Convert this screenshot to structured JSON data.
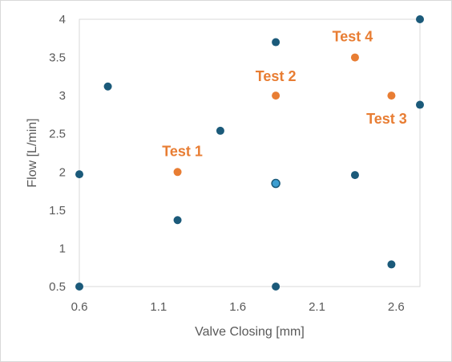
{
  "chart_data": {
    "type": "scatter",
    "title": "",
    "xlabel": "Valve Closing [mm]",
    "ylabel": "Flow [L/min]",
    "xlim": [
      0.6,
      2.75
    ],
    "ylim": [
      0.5,
      4.0
    ],
    "x_ticks": [
      "0.6",
      "1.1",
      "1.6",
      "2.1",
      "2.6"
    ],
    "y_ticks": [
      "0.5",
      "1",
      "1.5",
      "2",
      "2.5",
      "3",
      "3.5",
      "4"
    ],
    "grid": false,
    "legend": "none",
    "colors": {
      "design_points": "#1b5a7a",
      "tests": "#e87d33",
      "highlight_fill": "#3c9ed1",
      "plot_border": "#d9d9d9",
      "axis_text": "#595959"
    },
    "series": [
      {
        "points": [
          {
            "x": 0.6,
            "y": 1.97
          },
          {
            "x": 0.6,
            "y": 0.5
          },
          {
            "x": 0.78,
            "y": 3.12
          },
          {
            "x": 1.22,
            "y": 1.37
          },
          {
            "x": 1.49,
            "y": 2.54
          },
          {
            "x": 1.84,
            "y": 3.7
          },
          {
            "x": 1.84,
            "y": 1.85
          },
          {
            "x": 1.84,
            "y": 0.5
          },
          {
            "x": 2.34,
            "y": 1.96
          },
          {
            "x": 2.57,
            "y": 0.79
          },
          {
            "x": 2.75,
            "y": 4.0
          },
          {
            "x": 2.75,
            "y": 2.88
          }
        ]
      },
      {
        "points": [
          {
            "x": 1.22,
            "y": 2.0,
            "label": "Test 1"
          },
          {
            "x": 1.84,
            "y": 3.0,
            "label": "Test 2"
          },
          {
            "x": 2.57,
            "y": 3.0,
            "label": "Test 3"
          },
          {
            "x": 2.34,
            "y": 3.5,
            "label": "Test 4"
          }
        ]
      }
    ]
  }
}
